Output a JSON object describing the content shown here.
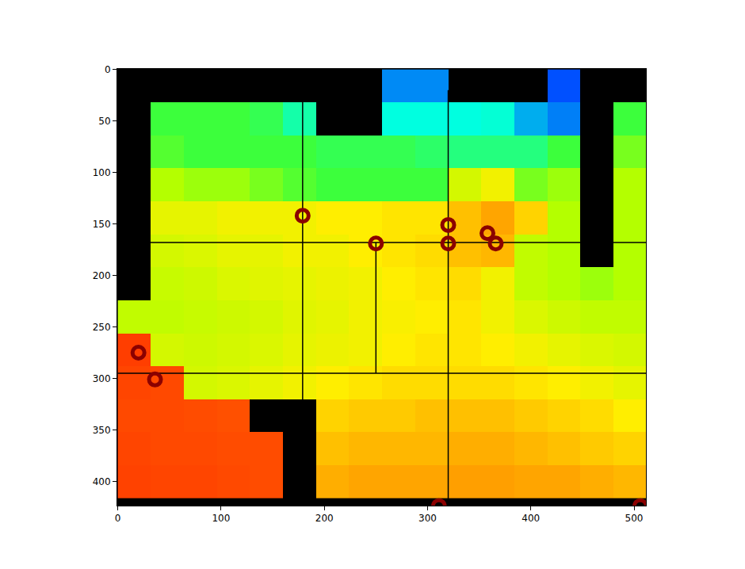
{
  "chart_data": {
    "type": "heatmap",
    "xlim": [
      -0.5,
      511.5
    ],
    "ylim": [
      423.5,
      -0.5
    ],
    "xticks": [
      0,
      100,
      200,
      300,
      400,
      500
    ],
    "yticks": [
      0,
      50,
      100,
      150,
      200,
      250,
      300,
      350,
      400
    ],
    "zlim": [
      0,
      1
    ],
    "x": [
      16,
      48,
      80,
      112,
      144,
      176,
      208,
      240,
      272,
      304,
      336,
      368,
      400,
      432,
      464,
      496
    ],
    "y": [
      16,
      48,
      80,
      112,
      144,
      176,
      208,
      240,
      272,
      304,
      336,
      368,
      400
    ],
    "cells": [
      [
        null,
        null,
        null,
        null,
        null,
        null,
        null,
        null,
        0.85,
        0.85,
        null,
        null,
        null,
        0.9,
        null,
        null
      ],
      [
        null,
        0.6,
        0.6,
        0.6,
        0.62,
        0.7,
        null,
        null,
        0.75,
        0.75,
        0.75,
        0.74,
        0.82,
        0.86,
        null,
        0.6
      ],
      [
        null,
        0.58,
        0.6,
        0.6,
        0.6,
        0.6,
        0.62,
        0.62,
        0.62,
        0.64,
        0.66,
        0.66,
        0.66,
        0.6,
        null,
        0.55
      ],
      [
        null,
        0.5,
        0.52,
        0.52,
        0.55,
        0.58,
        0.6,
        0.6,
        0.6,
        0.6,
        0.45,
        0.4,
        0.55,
        0.52,
        null,
        0.5
      ],
      [
        null,
        0.42,
        0.42,
        0.4,
        0.4,
        0.4,
        0.38,
        0.38,
        0.37,
        0.37,
        0.33,
        0.3,
        0.35,
        0.5,
        null,
        0.5
      ],
      [
        null,
        0.45,
        0.44,
        0.42,
        0.42,
        0.4,
        0.4,
        0.38,
        0.37,
        0.36,
        0.33,
        0.32,
        0.48,
        0.5,
        null,
        0.5
      ],
      [
        null,
        0.47,
        0.46,
        0.44,
        0.43,
        0.42,
        0.41,
        0.4,
        0.38,
        0.37,
        0.36,
        0.4,
        0.48,
        0.5,
        0.52,
        0.5
      ],
      [
        0.48,
        0.48,
        0.47,
        0.46,
        0.45,
        0.43,
        0.42,
        0.4,
        0.39,
        0.38,
        0.37,
        0.4,
        0.44,
        0.46,
        0.48,
        0.48
      ],
      [
        0.1,
        0.45,
        0.46,
        0.45,
        0.44,
        0.42,
        0.41,
        0.4,
        0.38,
        0.37,
        0.37,
        0.38,
        0.4,
        0.42,
        0.44,
        0.45
      ],
      [
        0.12,
        0.13,
        0.45,
        0.44,
        0.42,
        0.4,
        0.38,
        0.37,
        0.36,
        0.36,
        0.36,
        0.36,
        0.37,
        0.38,
        0.4,
        0.42
      ],
      [
        0.13,
        0.13,
        0.14,
        0.15,
        null,
        null,
        0.35,
        0.34,
        0.34,
        0.33,
        0.33,
        0.33,
        0.34,
        0.35,
        0.36,
        0.38
      ],
      [
        0.12,
        0.13,
        0.13,
        0.14,
        0.14,
        null,
        0.33,
        0.32,
        0.32,
        0.32,
        0.31,
        0.31,
        0.32,
        0.33,
        0.34,
        0.35
      ],
      [
        0.11,
        0.12,
        0.12,
        0.13,
        0.14,
        null,
        0.31,
        0.3,
        0.3,
        0.3,
        0.29,
        0.29,
        0.3,
        0.3,
        0.31,
        0.32
      ]
    ],
    "lines": {
      "color": "#000000",
      "segments": [
        {
          "x": [
            0,
            512
          ],
          "y": [
            168,
            168
          ]
        },
        {
          "x": [
            0,
            512
          ],
          "y": [
            295,
            295
          ]
        },
        {
          "x": [
            179,
            179
          ],
          "y": [
            0,
            424
          ]
        },
        {
          "x": [
            320,
            320
          ],
          "y": [
            20,
            424
          ]
        },
        {
          "x": [
            250,
            250
          ],
          "y": [
            168,
            295
          ]
        }
      ]
    },
    "points": {
      "color": "#8b0000",
      "marker": "circle-open",
      "x": [
        179,
        250,
        320,
        320,
        358,
        366,
        20,
        36,
        311,
        506
      ],
      "y": [
        142,
        169,
        151,
        169,
        159,
        169,
        275,
        301,
        424,
        424
      ]
    }
  }
}
